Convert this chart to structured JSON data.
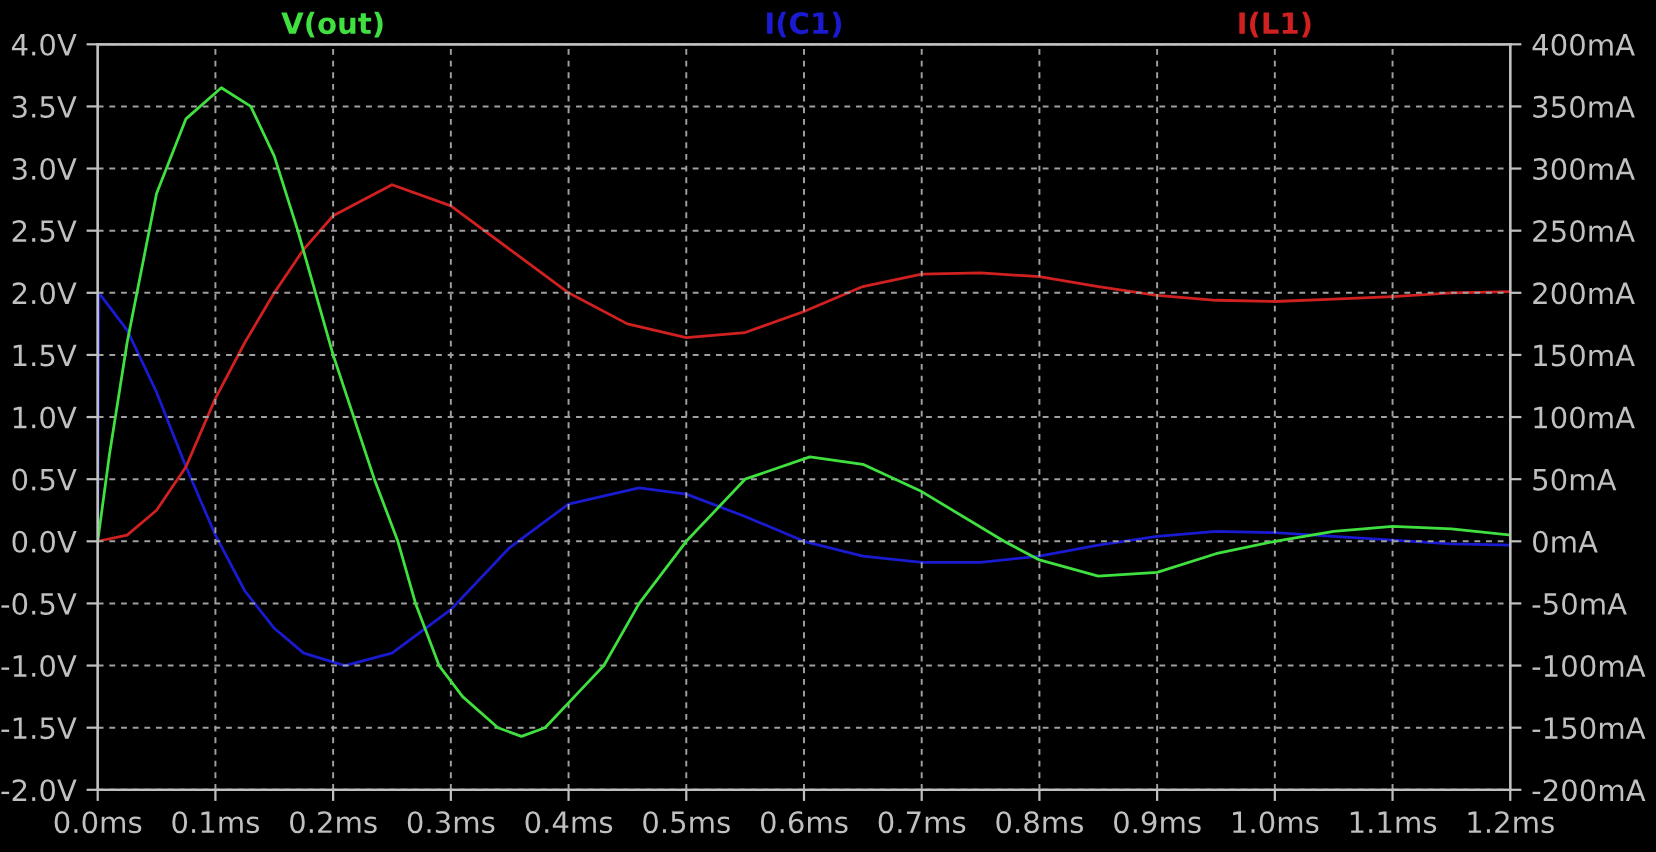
{
  "chart_data": {
    "type": "line",
    "grid": true,
    "legend": false,
    "xlim": [
      0,
      1.2
    ],
    "xticks": [
      {
        "value": 0,
        "label": "0.0ms"
      },
      {
        "value": 0.1,
        "label": "0.1ms"
      },
      {
        "value": 0.2,
        "label": "0.2ms"
      },
      {
        "value": 0.3,
        "label": "0.3ms"
      },
      {
        "value": 0.4,
        "label": "0.4ms"
      },
      {
        "value": 0.5,
        "label": "0.5ms"
      },
      {
        "value": 0.6,
        "label": "0.6ms"
      },
      {
        "value": 0.7,
        "label": "0.7ms"
      },
      {
        "value": 0.8,
        "label": "0.8ms"
      },
      {
        "value": 0.9,
        "label": "0.9ms"
      },
      {
        "value": 1.0,
        "label": "1.0ms"
      },
      {
        "value": 1.1,
        "label": "1.1ms"
      },
      {
        "value": 1.2,
        "label": "1.2ms"
      }
    ],
    "ylim": [
      -2,
      4
    ],
    "yticks": [
      {
        "value": -2,
        "label": "-2.0V"
      },
      {
        "value": -1.5,
        "label": "-1.5V"
      },
      {
        "value": -1,
        "label": "-1.0V"
      },
      {
        "value": -0.5,
        "label": "-0.5V"
      },
      {
        "value": 0,
        "label": "0.0V"
      },
      {
        "value": 0.5,
        "label": "0.5V"
      },
      {
        "value": 1,
        "label": "1.0V"
      },
      {
        "value": 1.5,
        "label": "1.5V"
      },
      {
        "value": 2,
        "label": "2.0V"
      },
      {
        "value": 2.5,
        "label": "2.5V"
      },
      {
        "value": 3,
        "label": "3.0V"
      },
      {
        "value": 3.5,
        "label": "3.5V"
      },
      {
        "value": 4,
        "label": "4.0V"
      }
    ],
    "y2lim": [
      -200,
      400
    ],
    "y2ticks": [
      {
        "value": -200,
        "label": "-200mA"
      },
      {
        "value": -150,
        "label": "-150mA"
      },
      {
        "value": -100,
        "label": "-100mA"
      },
      {
        "value": -50,
        "label": "-50mA"
      },
      {
        "value": 0,
        "label": "0mA"
      },
      {
        "value": 50,
        "label": "50mA"
      },
      {
        "value": 100,
        "label": "100mA"
      },
      {
        "value": 150,
        "label": "150mA"
      },
      {
        "value": 200,
        "label": "200mA"
      },
      {
        "value": 250,
        "label": "250mA"
      },
      {
        "value": 300,
        "label": "300mA"
      },
      {
        "value": 350,
        "label": "350mA"
      },
      {
        "value": 400,
        "label": "400mA"
      }
    ],
    "series": [
      {
        "name": "V(out)",
        "color": "#3fe03f",
        "x": [
          0,
          0.01,
          0.025,
          0.05,
          0.075,
          0.105,
          0.13,
          0.15,
          0.17,
          0.2,
          0.235,
          0.255,
          0.27,
          0.29,
          0.31,
          0.34,
          0.36,
          0.38,
          0.41,
          0.43,
          0.46,
          0.5,
          0.55,
          0.605,
          0.65,
          0.7,
          0.77,
          0.8,
          0.85,
          0.9,
          0.95,
          1.0,
          1.05,
          1.1,
          1.15,
          1.2
        ],
        "values": [
          0,
          0.7,
          1.6,
          2.8,
          3.4,
          3.65,
          3.5,
          3.1,
          2.5,
          1.5,
          0.5,
          0,
          -0.5,
          -1.0,
          -1.25,
          -1.5,
          -1.57,
          -1.5,
          -1.2,
          -1.0,
          -0.5,
          0,
          0.5,
          0.68,
          0.62,
          0.4,
          0,
          -0.15,
          -0.28,
          -0.25,
          -0.1,
          0,
          0.08,
          0.12,
          0.1,
          0.05
        ]
      },
      {
        "name": "I(C1)",
        "color": "#1a1ad0",
        "axis": "y2",
        "x": [
          0,
          0.001,
          0.025,
          0.05,
          0.075,
          0.1,
          0.125,
          0.15,
          0.175,
          0.21,
          0.25,
          0.3,
          0.35,
          0.4,
          0.46,
          0.5,
          0.55,
          0.6,
          0.65,
          0.7,
          0.75,
          0.8,
          0.85,
          0.9,
          0.95,
          1.0,
          1.05,
          1.1,
          1.15,
          1.2
        ],
        "values": [
          0,
          200,
          170,
          120,
          60,
          5,
          -40,
          -70,
          -90,
          -100,
          -90,
          -55,
          -5,
          30,
          43,
          38,
          20,
          0,
          -12,
          -17,
          -17,
          -12,
          -3,
          4,
          8,
          7,
          4,
          1,
          -2,
          -3
        ]
      },
      {
        "name": "I(L1)",
        "color": "#d02020",
        "axis": "y2",
        "x": [
          0,
          0.025,
          0.05,
          0.075,
          0.1,
          0.125,
          0.15,
          0.175,
          0.2,
          0.25,
          0.3,
          0.35,
          0.4,
          0.45,
          0.5,
          0.55,
          0.6,
          0.65,
          0.7,
          0.75,
          0.8,
          0.85,
          0.9,
          0.95,
          1.0,
          1.05,
          1.1,
          1.15,
          1.2
        ],
        "values": [
          0,
          5,
          25,
          60,
          115,
          160,
          200,
          235,
          262,
          287,
          270,
          235,
          200,
          175,
          164,
          168,
          185,
          205,
          215,
          216,
          213,
          205,
          198,
          194,
          193,
          195,
          197,
          200,
          201
        ]
      }
    ]
  }
}
